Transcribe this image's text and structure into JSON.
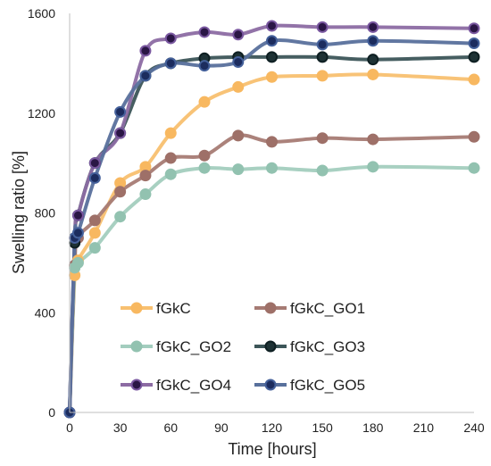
{
  "chart_data": {
    "type": "line",
    "xlabel": "Time [hours]",
    "ylabel": "Swelling ratio [%]",
    "xlim": [
      0,
      240
    ],
    "ylim": [
      0,
      1600
    ],
    "xticks": [
      0,
      30,
      60,
      90,
      120,
      150,
      180,
      210,
      240
    ],
    "yticks": [
      0,
      400,
      800,
      1200,
      1600
    ],
    "x_tick_labels": [
      "0",
      "30",
      "60",
      "90",
      "120",
      "150",
      "180",
      "210",
      "240"
    ],
    "y_tick_labels": [
      "0",
      "400",
      "800",
      "1200",
      "1600"
    ],
    "grid": false,
    "legend_position": "inside-bottom",
    "x": [
      0,
      3,
      5,
      15,
      30,
      45,
      60,
      80,
      100,
      120,
      150,
      180,
      240
    ],
    "series": [
      {
        "name": "fGkC",
        "color": "#F8C070",
        "marker_fill": "#F8B860",
        "marker_edge": "#F8B860",
        "values": [
          0,
          550,
          610,
          720,
          920,
          985,
          1120,
          1245,
          1305,
          1345,
          1350,
          1355,
          1335
        ]
      },
      {
        "name": "fGkC_GO1",
        "color": "#A67B74",
        "marker_fill": "#9E7068",
        "marker_edge": "#9E7068",
        "values": [
          0,
          590,
          700,
          770,
          885,
          950,
          1020,
          1030,
          1110,
          1085,
          1100,
          1095,
          1105
        ]
      },
      {
        "name": "fGkC_GO2",
        "color": "#A3CDBE",
        "marker_fill": "#92C2B0",
        "marker_edge": "#92C2B0",
        "values": [
          0,
          580,
          600,
          660,
          785,
          875,
          955,
          980,
          975,
          980,
          970,
          985,
          980
        ]
      },
      {
        "name": "fGkC_GO3",
        "color": "#3C5558",
        "marker_fill": "#1E3235",
        "marker_edge": "#0E1F22",
        "values": [
          0,
          680,
          790,
          1000,
          1120,
          1350,
          1400,
          1420,
          1425,
          1425,
          1425,
          1415,
          1425
        ]
      },
      {
        "name": "fGkC_GO4",
        "color": "#8C6BA3",
        "marker_fill": "#2A1645",
        "marker_edge": "#7A58A0",
        "values": [
          0,
          700,
          790,
          1000,
          1120,
          1450,
          1500,
          1525,
          1515,
          1550,
          1545,
          1545,
          1540
        ]
      },
      {
        "name": "fGkC_GO5",
        "color": "#58709C",
        "marker_fill": "#1C2C5E",
        "marker_edge": "#44609A",
        "values": [
          0,
          700,
          720,
          940,
          1205,
          1350,
          1400,
          1390,
          1405,
          1490,
          1475,
          1490,
          1480
        ]
      }
    ]
  }
}
